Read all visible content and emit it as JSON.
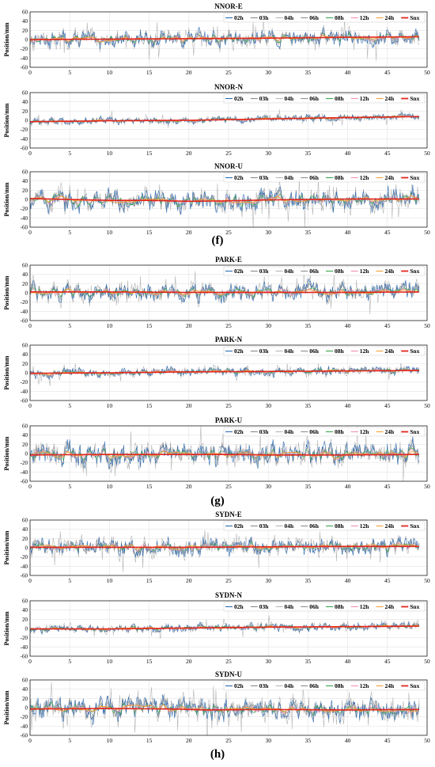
{
  "figure": {
    "group_labels": [
      "(f)",
      "(g)",
      "(h)"
    ],
    "y_axis_label": "Position/mm",
    "legend_entries": [
      "02h",
      "03h",
      "04h",
      "06h",
      "08h",
      "12h",
      "24h",
      "Snx"
    ]
  },
  "colors": {
    "02h": "#2f6db3",
    "03h": "#8a8a8a",
    "04h": "#b7b7b7",
    "06h": "#8e8e8e",
    "08h": "#3aa84a",
    "12h": "#f08fb4",
    "24h": "#f2a33a",
    "Snx": "#e2261c"
  },
  "chart_data": [
    {
      "type": "line",
      "title": "NNOR-E",
      "ylabel": "Position/mm",
      "xlim": [
        0,
        50
      ],
      "ylim": [
        -60,
        60
      ],
      "xticks": [
        0,
        5,
        10,
        15,
        20,
        25,
        30,
        35,
        40,
        45,
        50
      ],
      "yticks": [
        60,
        40,
        20,
        0,
        -20,
        -40,
        -60
      ],
      "grid": true,
      "legend_position": "top-right",
      "snx_trend": [
        [
          0,
          0
        ],
        [
          10,
          1
        ],
        [
          20,
          2
        ],
        [
          30,
          3
        ],
        [
          40,
          5
        ],
        [
          49,
          6
        ]
      ],
      "noise_amplitude": 18
    },
    {
      "type": "line",
      "title": "NNOR-N",
      "ylabel": "Position/mm",
      "xlim": [
        0,
        50
      ],
      "ylim": [
        -60,
        60
      ],
      "xticks": [
        0,
        5,
        10,
        15,
        20,
        25,
        30,
        35,
        40,
        45,
        50
      ],
      "yticks": [
        60,
        40,
        20,
        0,
        -20,
        -40,
        -60
      ],
      "grid": true,
      "legend_position": "top-right",
      "snx_trend": [
        [
          0,
          -3
        ],
        [
          10,
          -1
        ],
        [
          20,
          0
        ],
        [
          30,
          3
        ],
        [
          40,
          6
        ],
        [
          49,
          8
        ]
      ],
      "noise_amplitude": 8
    },
    {
      "type": "line",
      "title": "NNOR-U",
      "ylabel": "Position/mm",
      "xlim": [
        0,
        50
      ],
      "ylim": [
        -60,
        60
      ],
      "xticks": [
        0,
        5,
        10,
        15,
        20,
        25,
        30,
        35,
        40,
        45,
        50
      ],
      "yticks": [
        60,
        40,
        20,
        0,
        -20,
        -40,
        -60
      ],
      "grid": true,
      "legend_position": "top-right",
      "snx_trend": [
        [
          0,
          2
        ],
        [
          5,
          0
        ],
        [
          10,
          -2
        ],
        [
          15,
          -2
        ],
        [
          20,
          -4
        ],
        [
          25,
          -3
        ],
        [
          30,
          -1
        ],
        [
          35,
          0
        ],
        [
          40,
          1
        ],
        [
          45,
          1
        ],
        [
          49,
          1
        ]
      ],
      "noise_amplitude": 24
    },
    {
      "type": "line",
      "title": "PARK-E",
      "ylabel": "Position/mm",
      "xlim": [
        0,
        50
      ],
      "ylim": [
        -60,
        60
      ],
      "xticks": [
        0,
        5,
        10,
        15,
        20,
        25,
        30,
        35,
        40,
        45,
        50
      ],
      "yticks": [
        60,
        40,
        20,
        0,
        -20,
        -40,
        -60
      ],
      "grid": true,
      "legend_position": "top-right",
      "snx_trend": [
        [
          0,
          2
        ],
        [
          10,
          2
        ],
        [
          20,
          1
        ],
        [
          30,
          1
        ],
        [
          40,
          1
        ],
        [
          49,
          2
        ]
      ],
      "noise_amplitude": 20
    },
    {
      "type": "line",
      "title": "PARK-N",
      "ylabel": "Position/mm",
      "xlim": [
        0,
        50
      ],
      "ylim": [
        -60,
        60
      ],
      "xticks": [
        0,
        5,
        10,
        15,
        20,
        25,
        30,
        35,
        40,
        45,
        50
      ],
      "yticks": [
        60,
        40,
        20,
        0,
        -20,
        -40,
        -60
      ],
      "grid": true,
      "legend_position": "top-right",
      "snx_trend": [
        [
          0,
          -1
        ],
        [
          10,
          0
        ],
        [
          20,
          2
        ],
        [
          30,
          3
        ],
        [
          40,
          4
        ],
        [
          49,
          5
        ]
      ],
      "noise_amplitude": 10
    },
    {
      "type": "line",
      "title": "PARK-U",
      "ylabel": "Position/mm",
      "xlim": [
        0,
        50
      ],
      "ylim": [
        -60,
        60
      ],
      "xticks": [
        0,
        5,
        10,
        15,
        20,
        25,
        30,
        35,
        40,
        45,
        50
      ],
      "yticks": [
        60,
        40,
        20,
        0,
        -20,
        -40,
        -60
      ],
      "grid": true,
      "legend_position": "top-right",
      "snx_trend": [
        [
          0,
          -3
        ],
        [
          10,
          -2
        ],
        [
          20,
          -2
        ],
        [
          25,
          -2
        ],
        [
          30,
          -3
        ],
        [
          40,
          -3
        ],
        [
          49,
          -2
        ]
      ],
      "noise_amplitude": 26
    },
    {
      "type": "line",
      "title": "SYDN-E",
      "ylabel": "Position/mm",
      "xlim": [
        0,
        50
      ],
      "ylim": [
        -60,
        60
      ],
      "xticks": [
        0,
        5,
        10,
        15,
        20,
        25,
        30,
        35,
        40,
        45,
        50
      ],
      "yticks": [
        60,
        40,
        20,
        0,
        -20,
        -40,
        -60
      ],
      "grid": true,
      "legend_position": "top-right",
      "snx_trend": [
        [
          0,
          1
        ],
        [
          10,
          1
        ],
        [
          20,
          1
        ],
        [
          30,
          2
        ],
        [
          40,
          3
        ],
        [
          49,
          3
        ]
      ],
      "noise_amplitude": 20
    },
    {
      "type": "line",
      "title": "SYDN-N",
      "ylabel": "Position/mm",
      "xlim": [
        0,
        50
      ],
      "ylim": [
        -60,
        60
      ],
      "xticks": [
        0,
        5,
        10,
        15,
        20,
        25,
        30,
        35,
        40,
        45,
        50
      ],
      "yticks": [
        60,
        40,
        20,
        0,
        -20,
        -40,
        -60
      ],
      "grid": true,
      "legend_position": "top-right",
      "snx_trend": [
        [
          0,
          -1
        ],
        [
          10,
          -1
        ],
        [
          20,
          1
        ],
        [
          30,
          3
        ],
        [
          40,
          4
        ],
        [
          49,
          5
        ]
      ],
      "noise_amplitude": 9
    },
    {
      "type": "line",
      "title": "SYDN-U",
      "ylabel": "Position/mm",
      "xlim": [
        0,
        50
      ],
      "ylim": [
        -60,
        60
      ],
      "xticks": [
        0,
        5,
        10,
        15,
        20,
        25,
        30,
        35,
        40,
        45,
        50
      ],
      "yticks": [
        60,
        40,
        20,
        0,
        -20,
        -40,
        -60
      ],
      "grid": true,
      "legend_position": "top-right",
      "snx_trend": [
        [
          0,
          -3
        ],
        [
          10,
          -2
        ],
        [
          18,
          -3
        ],
        [
          22,
          -5
        ],
        [
          30,
          -4
        ],
        [
          40,
          -5
        ],
        [
          49,
          -4
        ]
      ],
      "noise_amplitude": 26
    }
  ]
}
